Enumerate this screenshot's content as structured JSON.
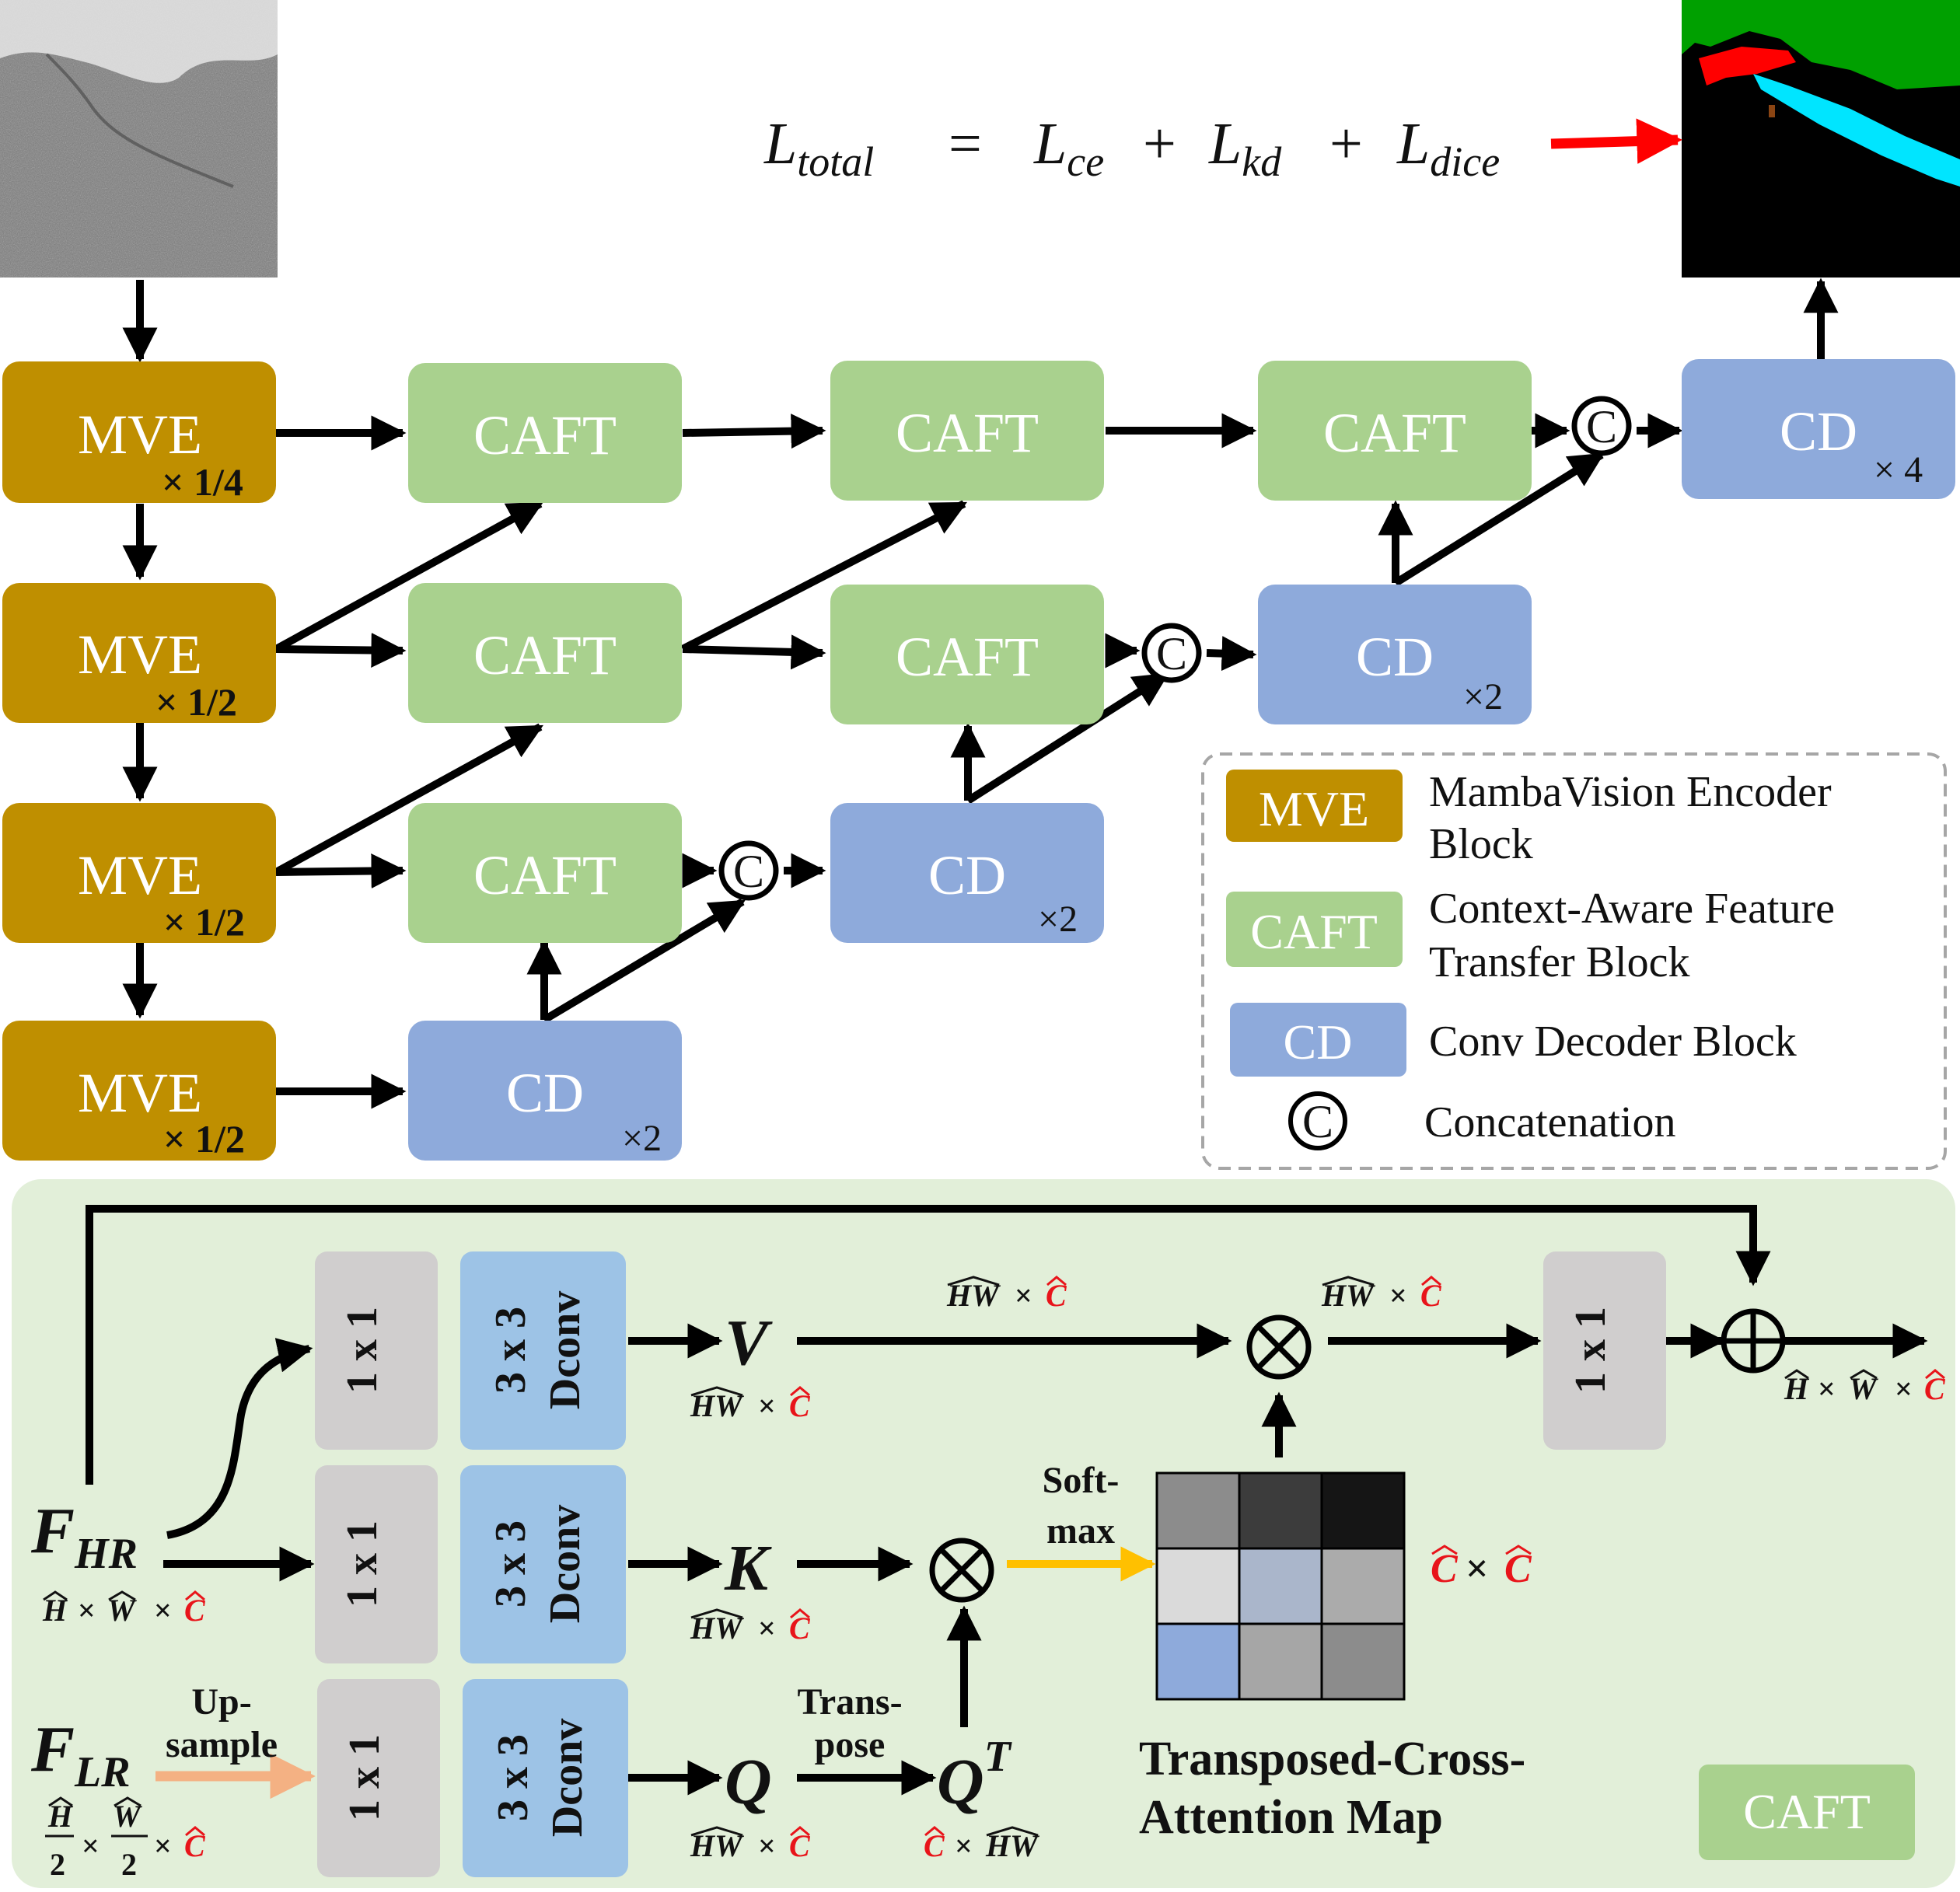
{
  "colors": {
    "mve": "#bf8f00",
    "caft": "#a9d18e",
    "cd": "#8eaadb",
    "conv1x1": "#d0cece",
    "dconv": "#9dc3e6",
    "caft_panel": "#e2efd9",
    "legend_border": "#a6a6a6",
    "softmax_arrow": "#ffc000",
    "upsample_arrow": "#f4b183",
    "output_arrow": "#ff0000",
    "red_hat": "#e8141a"
  },
  "formula": {
    "L": "L",
    "total": "total",
    "eq": "=",
    "ce": "ce",
    "plus": "+",
    "kd": "kd",
    "dice": "dice"
  },
  "blocks": {
    "mve": "MVE",
    "caft": "CAFT",
    "cd": "CD",
    "concat": "C"
  },
  "scales": {
    "mve_1": "× 1/4",
    "mve_2": "× 1/2",
    "mve_3": "× 1/2",
    "mve_4": "× 1/2",
    "cd_1": "×2",
    "cd_2": "×2",
    "cd_3": "×2",
    "cd_4": "× 4"
  },
  "legend": {
    "mve_box": "MVE",
    "mve_l1": "MambaVision Encoder",
    "mve_l2": "Block",
    "caft_box": "CAFT",
    "caft_l1": "Context-Aware Feature",
    "caft_l2": "Transfer Block",
    "cd_box": "CD",
    "cd_l1": "Conv Decoder Block",
    "concat_sym": "C",
    "concat_l1": "Concatenation"
  },
  "caft_detail": {
    "conv": "1 x 1",
    "dconv_1": "3 x 3",
    "dconv_2": "Dconv",
    "V": "V",
    "K": "K",
    "Q": "Q",
    "QT": "Q",
    "T": "T",
    "F": "F",
    "HR": "HR",
    "LR": "LR",
    "upsample_1": "Up-",
    "upsample_2": "sample",
    "transpose_1": "Trans-",
    "transpose_2": "pose",
    "softmax_1": "Soft-",
    "softmax_2": "max",
    "tcam_1": "Transposed-Cross-",
    "tcam_2": "Attention Map",
    "panel_tag": "CAFT",
    "hw": "HW",
    "h": "H",
    "w": "W",
    "c": "C",
    "times": "×",
    "two": "2"
  },
  "heatmap": [
    [
      "#8c8c8c",
      "#3c3c3c",
      "#151515"
    ],
    [
      "#dadada",
      "#aab6cb",
      "#ababab"
    ],
    [
      "#8eaadb",
      "#a6a6a6",
      "#8c8c8c"
    ]
  ],
  "segmentation": {
    "land": "#00a000",
    "background": "#000000",
    "channel": "#00e5ff",
    "ship": "#ff0000",
    "spot": "#8b4513"
  }
}
